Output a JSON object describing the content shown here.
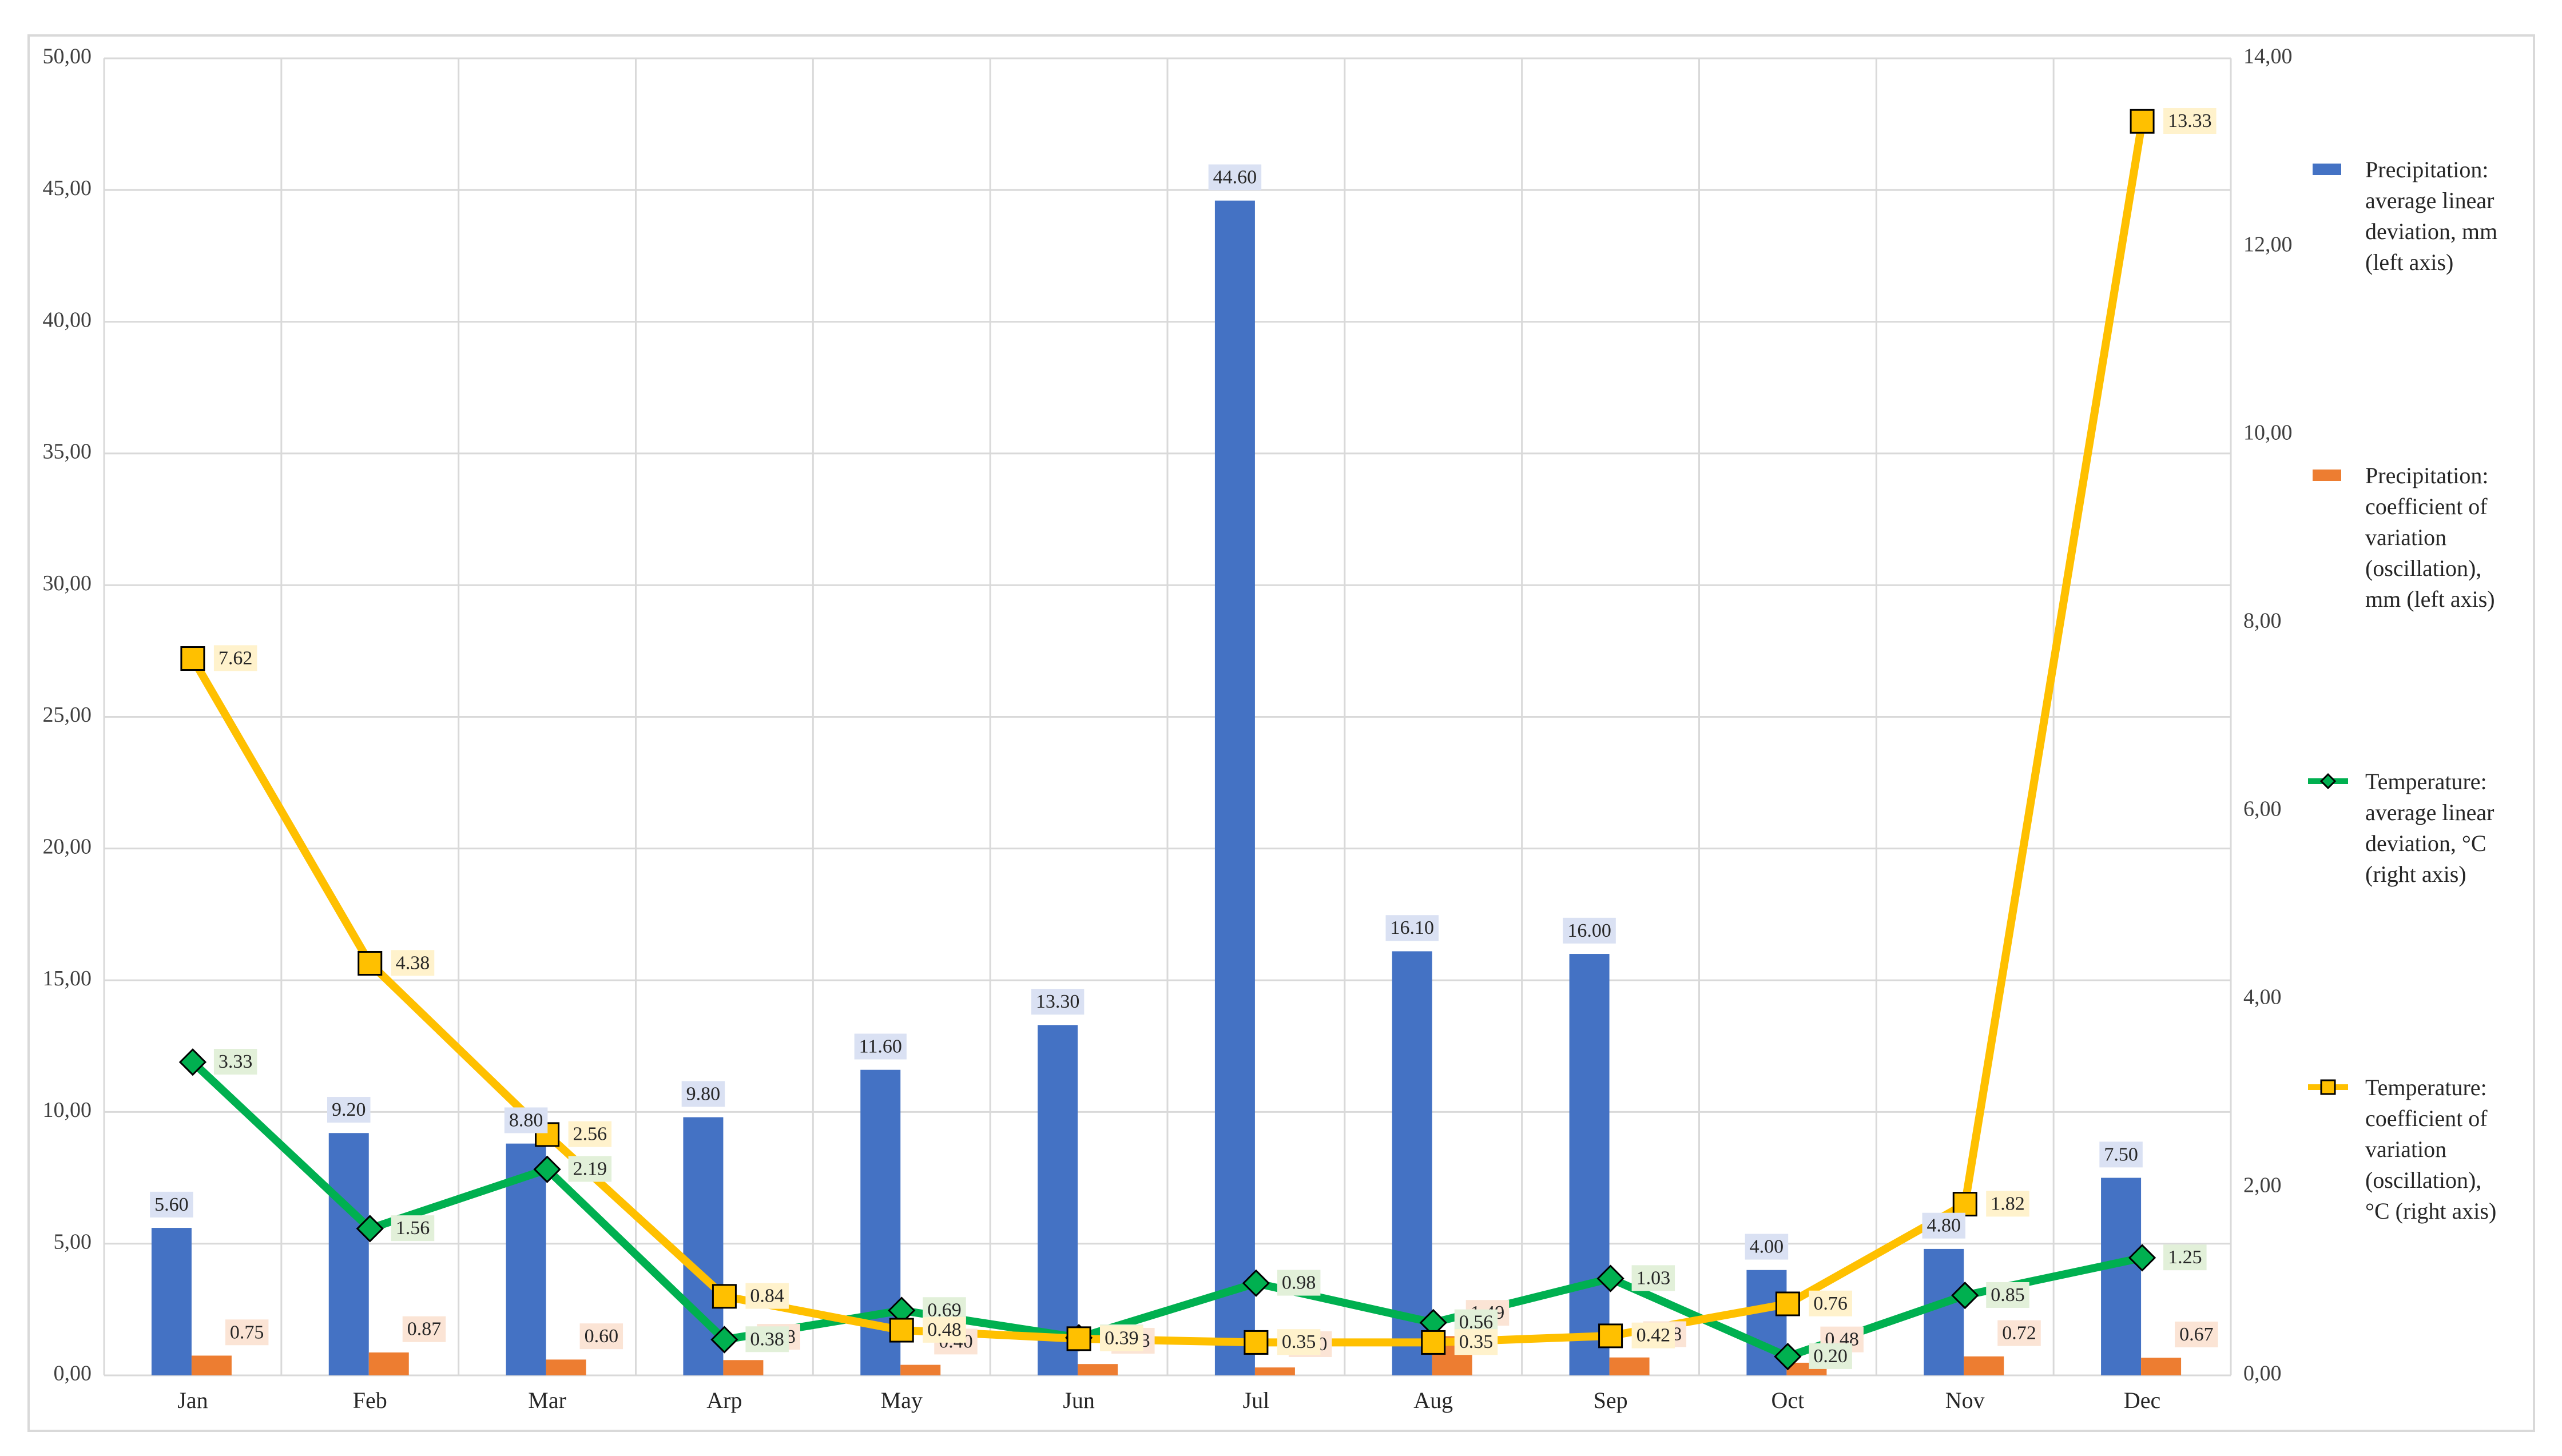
{
  "chart_data": {
    "type": "bar",
    "categories": [
      "Jan",
      "Feb",
      "Mar",
      "Arp",
      "May",
      "Jun",
      "Jul",
      "Aug",
      "Sep",
      "Oct",
      "Nov",
      "Dec"
    ],
    "left_axis": {
      "min": 0,
      "max": 50,
      "ticks": [
        "0,00",
        "5,00",
        "10,00",
        "15,00",
        "20,00",
        "25,00",
        "30,00",
        "35,00",
        "40,00",
        "45,00",
        "50,00"
      ]
    },
    "right_axis": {
      "min": 0,
      "max": 14,
      "ticks": [
        "0,00",
        "2,00",
        "4,00",
        "6,00",
        "8,00",
        "10,00",
        "12,00",
        "14,00"
      ]
    },
    "grid": true,
    "legend_position": "right",
    "series": [
      {
        "name": "Precipitation: average linear deviation, mm (left axis)",
        "legend_lines": [
          "Precipitation:",
          "average linear",
          "deviation, mm",
          "(left axis)"
        ],
        "type": "bar",
        "axis": "left",
        "color": "#4472C4",
        "label_bg": "#DAE1F3",
        "values": [
          5.6,
          9.2,
          8.8,
          9.8,
          11.6,
          13.3,
          44.6,
          16.1,
          16.0,
          4.0,
          4.8,
          7.5
        ],
        "labels": [
          "5.60",
          "9.20",
          "8.80",
          "9.80",
          "11.60",
          "13.30",
          "44.60",
          "16.10",
          "16.00",
          "4.00",
          "4.80",
          "7.50"
        ]
      },
      {
        "name": "Precipitation: coefficient of variation (oscillation), mm (left axis)",
        "legend_lines": [
          "Precipitation:",
          "coefficient of",
          "variation",
          "(oscillation),",
          "mm (left axis)"
        ],
        "type": "bar",
        "axis": "left",
        "color": "#ED7D31",
        "label_bg": "#FBE4D5",
        "values": [
          0.75,
          0.87,
          0.6,
          0.58,
          0.4,
          0.43,
          0.3,
          1.49,
          0.68,
          0.48,
          0.72,
          0.67
        ],
        "labels": [
          "0.75",
          "0.87",
          "0.60",
          "0.58",
          "0.40",
          "0.43",
          "0.30",
          "1.49",
          "0.68",
          "0.48",
          "0.72",
          "0.67"
        ]
      },
      {
        "name": "Temperature: average linear deviation, °C (right axis)",
        "legend_lines": [
          "Temperature:",
          "average linear",
          "deviation, °C",
          "(right axis)"
        ],
        "type": "line",
        "axis": "right",
        "color": "#00B050",
        "marker": "diamond",
        "marker_fill": "#00B050",
        "label_bg": "#E2F0D9",
        "values": [
          3.33,
          1.56,
          2.19,
          0.38,
          0.69,
          0.4,
          0.98,
          0.56,
          1.03,
          0.2,
          0.85,
          1.25
        ],
        "labels": [
          "3.33",
          "1.56",
          "2.19",
          "0.38",
          "0.69",
          "0.40",
          "0.98",
          "0.56",
          "1.03",
          "0.20",
          "0.85",
          "1.25"
        ]
      },
      {
        "name": "Temperature: coefficient of variation (oscillation), °C (right axis)",
        "legend_lines": [
          "Temperature:",
          "coefficient of",
          "variation",
          "(oscillation),",
          "°C (right axis)"
        ],
        "type": "line",
        "axis": "right",
        "color": "#FFC000",
        "marker": "square",
        "marker_fill": "#FFC000",
        "label_bg": "#FFF2CC",
        "values": [
          7.62,
          4.38,
          2.56,
          0.84,
          0.48,
          0.39,
          0.35,
          0.35,
          0.42,
          0.76,
          1.82,
          13.33
        ],
        "labels": [
          "7.62",
          "4.38",
          "2.56",
          "0.84",
          "0.48",
          "0.39",
          "0.35",
          "0.35",
          "0.42",
          "0.76",
          "1.82",
          "13.33"
        ]
      }
    ]
  }
}
